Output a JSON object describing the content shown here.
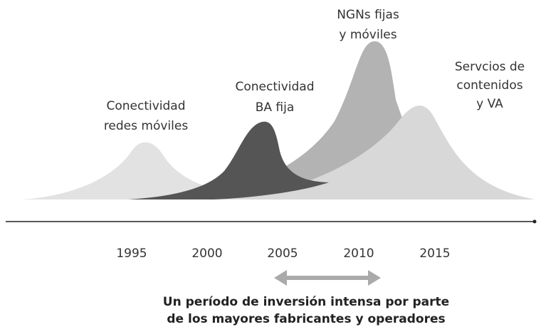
{
  "waves": [
    {
      "label": [
        "Conectividad",
        "redes móviles"
      ]
    },
    {
      "label": [
        "Conectividad",
        "BA fija"
      ]
    },
    {
      "label": [
        "NGNs fijas",
        "y móviles"
      ]
    },
    {
      "label": [
        "Servcios de",
        "contenidos",
        "y VA"
      ]
    }
  ],
  "years": [
    "1995",
    "2000",
    "2005",
    "2010",
    "2015"
  ],
  "caption": [
    "Un período de inversión intensa por parte",
    "de los mayores fabricantes y operadores"
  ]
}
